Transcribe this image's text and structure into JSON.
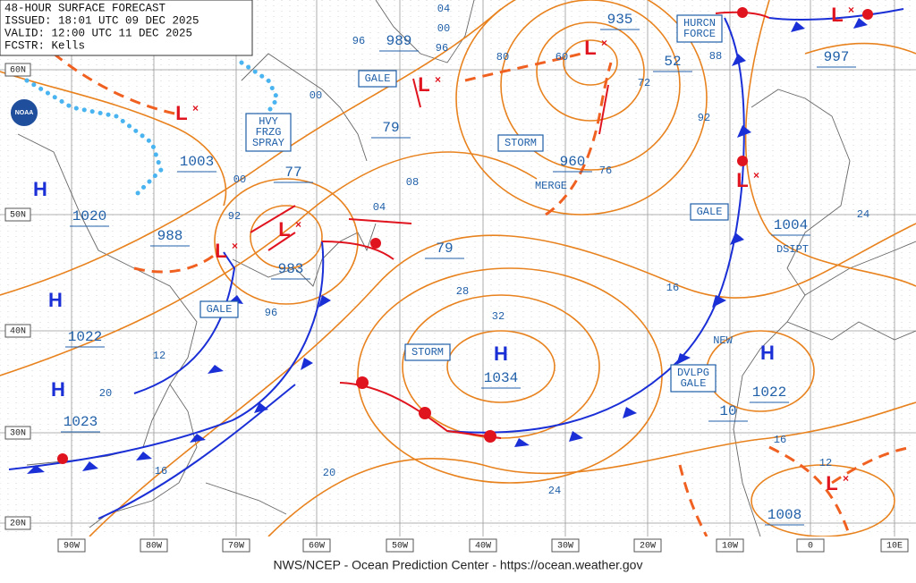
{
  "header": {
    "lines": [
      "48-HOUR SURFACE FORECAST",
      "ISSUED: 18:01 UTC 09 DEC 2025",
      "VALID:  12:00 UTC 11 DEC 2025",
      "FCSTR:  Kells"
    ]
  },
  "logo": "NOAA",
  "lat_labels": [
    "60N",
    "50N",
    "40N",
    "30N",
    "20N"
  ],
  "lon_labels": [
    "90W",
    "80W",
    "70W",
    "60W",
    "50W",
    "40W",
    "30W",
    "20W",
    "10W",
    "0",
    "10E"
  ],
  "center_symbols": [
    "H",
    "H",
    "H",
    "H",
    "H",
    "L",
    "L",
    "L",
    "L",
    "L",
    "L",
    "L",
    "L"
  ],
  "pressure_labels": [
    "1020",
    "1022",
    "1023",
    "1034",
    "1022",
    "1003",
    "988",
    "983",
    "935",
    "1004",
    "997",
    "1008",
    "989",
    "960",
    "79",
    "77",
    "79",
    "52",
    "10"
  ],
  "warnings": [
    {
      "lines": [
        "GALE"
      ]
    },
    {
      "lines": [
        "HVY",
        "FRZG",
        "SPRAY"
      ]
    },
    {
      "lines": [
        "STORM"
      ]
    },
    {
      "lines": [
        "GALE"
      ]
    },
    {
      "lines": [
        "GALE"
      ]
    },
    {
      "lines": [
        "STORM"
      ]
    },
    {
      "lines": [
        "DVLPG",
        "GALE"
      ]
    },
    {
      "lines": [
        "HURCN",
        "FORCE"
      ]
    }
  ],
  "notes": [
    "MERGE",
    "DSIPT",
    "NEW"
  ],
  "isobar_labels": [
    "96",
    "00",
    "04",
    "00",
    "96",
    "92",
    "00",
    "04",
    "08",
    "80",
    "60",
    "72",
    "76",
    "88",
    "92",
    "24",
    "16",
    "28",
    "32",
    "12",
    "20",
    "16",
    "20",
    "24",
    "16",
    "12",
    "96"
  ],
  "footer": "NWS/NCEP - Ocean Prediction Center - https://ocean.weather.gov"
}
